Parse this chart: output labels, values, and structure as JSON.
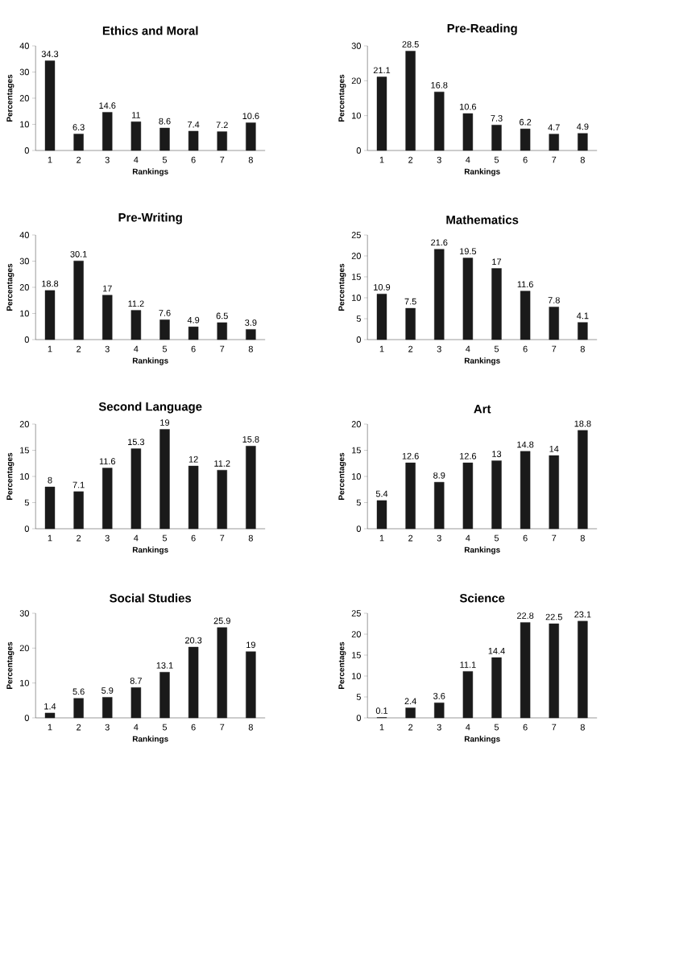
{
  "chart_data": [
    {
      "type": "bar",
      "title": "Ethics and Moral",
      "xlabel": "Rankings",
      "ylabel": "Percentages",
      "categories": [
        "1",
        "2",
        "3",
        "4",
        "5",
        "6",
        "7",
        "8"
      ],
      "values": [
        34.3,
        6.3,
        14.6,
        11,
        8.6,
        7.4,
        7.2,
        10.6
      ],
      "color": "#1a1a1a",
      "ylim": [
        0,
        40
      ],
      "yticks": [
        0,
        10,
        20,
        30,
        40
      ],
      "data_labels": true
    },
    {
      "type": "bar",
      "title": "Pre-Reading",
      "xlabel": "Rankings",
      "ylabel": "Percentages",
      "categories": [
        "1",
        "2",
        "3",
        "4",
        "5",
        "6",
        "7",
        "8"
      ],
      "values": [
        21.1,
        28.5,
        16.8,
        10.6,
        7.3,
        6.2,
        4.7,
        4.9
      ],
      "color": "#1a1a1a",
      "ylim": [
        0,
        30
      ],
      "yticks": [
        0,
        10,
        20,
        30
      ],
      "data_labels": true
    },
    {
      "type": "bar",
      "title": "Pre-Writing",
      "xlabel": "Rankings",
      "ylabel": "Percentages",
      "categories": [
        "1",
        "2",
        "3",
        "4",
        "5",
        "6",
        "7",
        "8"
      ],
      "values": [
        18.8,
        30.1,
        17,
        11.2,
        7.6,
        4.9,
        6.5,
        3.9
      ],
      "color": "#1a1a1a",
      "ylim": [
        0,
        40
      ],
      "yticks": [
        0,
        10,
        20,
        30,
        40
      ],
      "data_labels": true
    },
    {
      "type": "bar",
      "title": "Mathematics",
      "xlabel": "Rankings",
      "ylabel": "Percentages",
      "categories": [
        "1",
        "2",
        "3",
        "4",
        "5",
        "6",
        "7",
        "8"
      ],
      "values": [
        10.9,
        7.5,
        21.6,
        19.5,
        17,
        11.6,
        7.8,
        4.1
      ],
      "color": "#1a1a1a",
      "ylim": [
        0,
        25
      ],
      "yticks": [
        0,
        5,
        10,
        15,
        20,
        25
      ],
      "data_labels": true
    },
    {
      "type": "bar",
      "title": "Second Language",
      "xlabel": "Rankings",
      "ylabel": "Percentages",
      "categories": [
        "1",
        "2",
        "3",
        "4",
        "5",
        "6",
        "7",
        "8"
      ],
      "values": [
        8,
        7.1,
        11.6,
        15.3,
        19,
        12,
        11.2,
        15.8
      ],
      "color": "#1a1a1a",
      "ylim": [
        0,
        20
      ],
      "yticks": [
        0,
        5,
        10,
        15,
        20
      ],
      "data_labels": true
    },
    {
      "type": "bar",
      "title": "Art",
      "xlabel": "Rankings",
      "ylabel": "Percentages",
      "categories": [
        "1",
        "2",
        "3",
        "4",
        "5",
        "6",
        "7",
        "8"
      ],
      "values": [
        5.4,
        12.6,
        8.9,
        12.6,
        13,
        14.8,
        14,
        18.8
      ],
      "color": "#1a1a1a",
      "ylim": [
        0,
        20
      ],
      "yticks": [
        0,
        5,
        10,
        15,
        20
      ],
      "data_labels": true
    },
    {
      "type": "bar",
      "title": "Social Studies",
      "xlabel": "Rankings",
      "ylabel": "Percentages",
      "categories": [
        "1",
        "2",
        "3",
        "4",
        "5",
        "6",
        "7",
        "8"
      ],
      "values": [
        1.4,
        5.6,
        5.9,
        8.7,
        13.1,
        20.3,
        25.9,
        19
      ],
      "color": "#1a1a1a",
      "ylim": [
        0,
        30
      ],
      "yticks": [
        0,
        10,
        20,
        30
      ],
      "data_labels": true
    },
    {
      "type": "bar",
      "title": "Science",
      "xlabel": "Rankings",
      "ylabel": "Percentages",
      "categories": [
        "1",
        "2",
        "3",
        "4",
        "5",
        "6",
        "7",
        "8"
      ],
      "values": [
        0.1,
        2.4,
        3.6,
        11.1,
        14.4,
        22.8,
        22.5,
        23.1
      ],
      "color": "#1a1a1a",
      "ylim": [
        0,
        25
      ],
      "yticks": [
        0,
        5,
        10,
        15,
        20,
        25
      ],
      "data_labels": true
    }
  ]
}
